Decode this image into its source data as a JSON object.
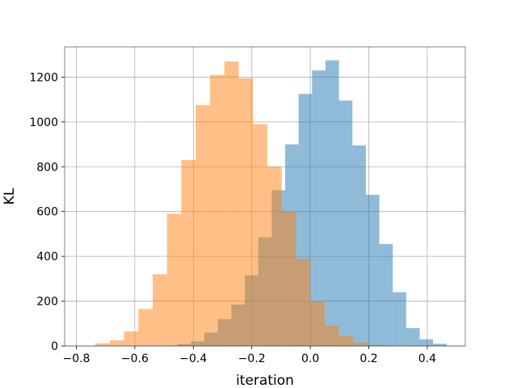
{
  "chart_data": {
    "type": "bar",
    "subtype": "overlapping-histogram",
    "title": "",
    "xlabel": "iteration",
    "ylabel": "KL",
    "xlim": [
      -0.84,
      0.53
    ],
    "ylim": [
      0,
      1335
    ],
    "grid": true,
    "legend": "none",
    "xticks": [
      -0.8,
      -0.6,
      -0.4,
      -0.2,
      0.0,
      0.2,
      0.4
    ],
    "xtick_labels": [
      "−0.8",
      "−0.6",
      "−0.4",
      "−0.2",
      "0.0",
      "0.2",
      "0.4"
    ],
    "yticks": [
      0,
      200,
      400,
      600,
      800,
      1000,
      1200
    ],
    "ytick_labels": [
      "0",
      "200",
      "400",
      "600",
      "800",
      "1000",
      "1200"
    ],
    "series": [
      {
        "color": "#1f77b4",
        "alpha": 0.5,
        "bin_edges": [
          -0.5,
          -0.454,
          -0.408,
          -0.362,
          -0.316,
          -0.27,
          -0.224,
          -0.178,
          -0.132,
          -0.086,
          -0.04,
          0.006,
          0.052,
          0.098,
          0.144,
          0.19,
          0.236,
          0.282,
          0.328,
          0.374,
          0.42,
          0.466
        ],
        "values": [
          2,
          8,
          20,
          60,
          120,
          185,
          315,
          485,
          695,
          900,
          1125,
          1230,
          1275,
          1095,
          895,
          675,
          455,
          240,
          80,
          30,
          10
        ]
      },
      {
        "color": "#ff7f0e",
        "alpha": 0.5,
        "bin_edges": [
          -0.735,
          -0.686,
          -0.637,
          -0.588,
          -0.539,
          -0.49,
          -0.441,
          -0.392,
          -0.343,
          -0.294,
          -0.245,
          -0.196,
          -0.147,
          -0.098,
          -0.049,
          0.0,
          0.049,
          0.098,
          0.147,
          0.196,
          0.245
        ],
        "values": [
          12,
          25,
          65,
          165,
          320,
          590,
          830,
          1075,
          1210,
          1270,
          1195,
          990,
          800,
          600,
          390,
          200,
          90,
          45,
          15,
          5
        ]
      }
    ]
  }
}
